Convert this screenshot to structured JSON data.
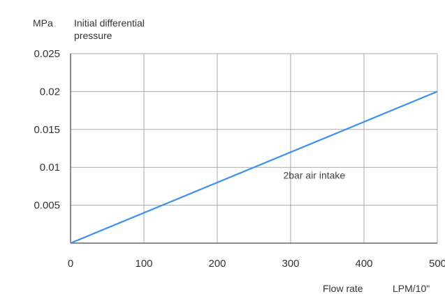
{
  "chart_data": {
    "type": "line",
    "y_unit": "MPa",
    "ylabel_lines": [
      "Initial differential",
      "pressure"
    ],
    "xlabel": "Flow rate",
    "x_unit": "LPM/10\"",
    "xlim": [
      0,
      500
    ],
    "ylim": [
      0,
      0.025
    ],
    "x_ticks": [
      {
        "value": 0,
        "label": "0"
      },
      {
        "value": 100,
        "label": "100"
      },
      {
        "value": 200,
        "label": "200"
      },
      {
        "value": 300,
        "label": "300"
      },
      {
        "value": 400,
        "label": "400"
      },
      {
        "value": 500,
        "label": "500"
      }
    ],
    "y_ticks": [
      {
        "value": 0.005,
        "label": "0.005"
      },
      {
        "value": 0.01,
        "label": "0.01"
      },
      {
        "value": 0.015,
        "label": "0.015"
      },
      {
        "value": 0.02,
        "label": "0.02"
      },
      {
        "value": 0.025,
        "label": "0.025"
      }
    ],
    "grid": true,
    "series": [
      {
        "color": "#3b8ff0",
        "x": [
          0,
          500
        ],
        "y": [
          0,
          0.02
        ]
      }
    ],
    "annotations": [
      {
        "text": "2bar  air intake",
        "x": 290,
        "y": 0.0085
      }
    ]
  }
}
